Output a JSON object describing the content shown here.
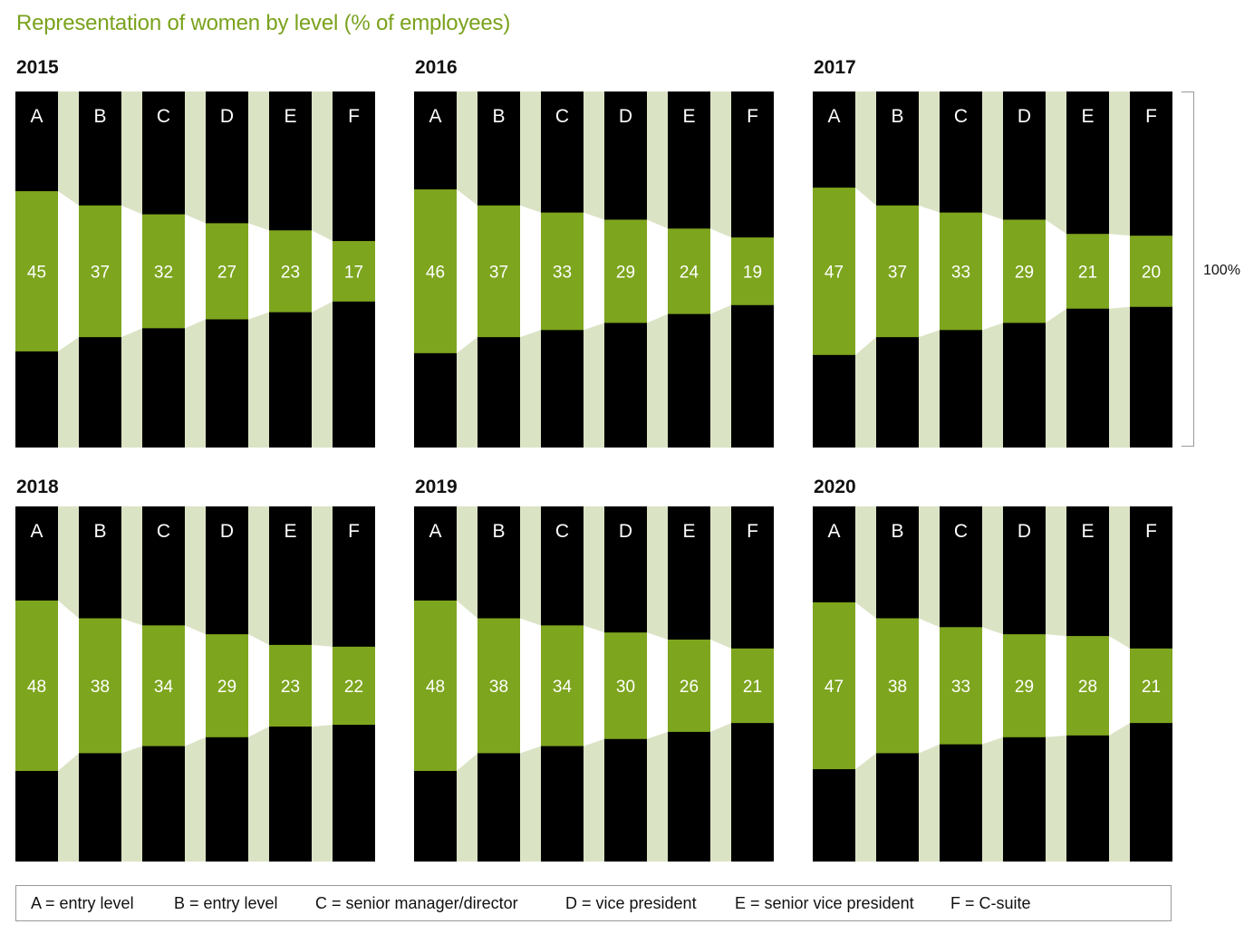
{
  "title": "Representation of women by level (% of employees)",
  "scale_label": "100%",
  "colors": {
    "women": "#7da51e",
    "bar": "#000000",
    "gap": "#dbe3c5",
    "connector": "#ffffff",
    "title": "#7aa21d"
  },
  "legend": [
    "A = entry level",
    "B = entry level",
    "C = senior manager/director",
    "D = vice president",
    "E = senior vice president",
    "F = C-suite"
  ],
  "chart_data": [
    {
      "type": "bar",
      "title": "2015",
      "categories": [
        "A",
        "B",
        "C",
        "D",
        "E",
        "F"
      ],
      "values": [
        45,
        37,
        32,
        27,
        23,
        17
      ],
      "ylim": [
        0,
        100
      ]
    },
    {
      "type": "bar",
      "title": "2016",
      "categories": [
        "A",
        "B",
        "C",
        "D",
        "E",
        "F"
      ],
      "values": [
        46,
        37,
        33,
        29,
        24,
        19
      ],
      "ylim": [
        0,
        100
      ]
    },
    {
      "type": "bar",
      "title": "2017",
      "categories": [
        "A",
        "B",
        "C",
        "D",
        "E",
        "F"
      ],
      "values": [
        47,
        37,
        33,
        29,
        21,
        20
      ],
      "ylim": [
        0,
        100
      ]
    },
    {
      "type": "bar",
      "title": "2018",
      "categories": [
        "A",
        "B",
        "C",
        "D",
        "E",
        "F"
      ],
      "values": [
        48,
        38,
        34,
        29,
        23,
        22
      ],
      "ylim": [
        0,
        100
      ]
    },
    {
      "type": "bar",
      "title": "2019",
      "categories": [
        "A",
        "B",
        "C",
        "D",
        "E",
        "F"
      ],
      "values": [
        48,
        38,
        34,
        30,
        26,
        21
      ],
      "ylim": [
        0,
        100
      ]
    },
    {
      "type": "bar",
      "title": "2020",
      "categories": [
        "A",
        "B",
        "C",
        "D",
        "E",
        "F"
      ],
      "values": [
        47,
        38,
        33,
        29,
        28,
        21
      ],
      "ylim": [
        0,
        100
      ]
    }
  ]
}
